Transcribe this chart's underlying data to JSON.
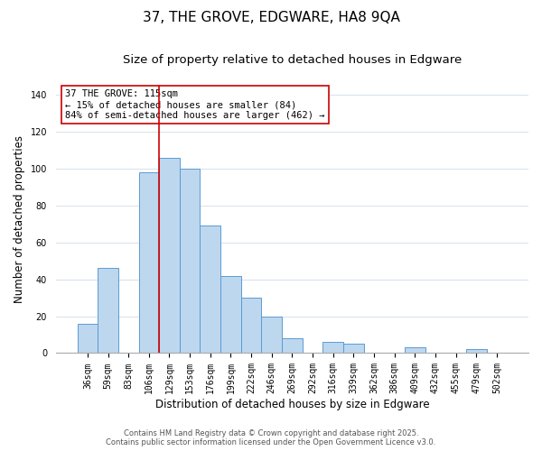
{
  "title": "37, THE GROVE, EDGWARE, HA8 9QA",
  "subtitle": "Size of property relative to detached houses in Edgware",
  "xlabel": "Distribution of detached houses by size in Edgware",
  "ylabel": "Number of detached properties",
  "bar_labels": [
    "36sqm",
    "59sqm",
    "83sqm",
    "106sqm",
    "129sqm",
    "153sqm",
    "176sqm",
    "199sqm",
    "222sqm",
    "246sqm",
    "269sqm",
    "292sqm",
    "316sqm",
    "339sqm",
    "362sqm",
    "386sqm",
    "409sqm",
    "432sqm",
    "455sqm",
    "479sqm",
    "502sqm"
  ],
  "bar_values": [
    16,
    46,
    0,
    98,
    106,
    100,
    69,
    42,
    30,
    20,
    8,
    0,
    6,
    5,
    0,
    0,
    3,
    0,
    0,
    2,
    0
  ],
  "bar_color": "#bdd7ee",
  "bar_edge_color": "#5b9bd5",
  "vline_color": "#cc0000",
  "vline_x_index": 3.5,
  "annotation_title": "37 THE GROVE: 115sqm",
  "annotation_line1": "← 15% of detached houses are smaller (84)",
  "annotation_line2": "84% of semi-detached houses are larger (462) →",
  "ylim": [
    0,
    145
  ],
  "yticks": [
    0,
    20,
    40,
    60,
    80,
    100,
    120,
    140
  ],
  "footer_line1": "Contains HM Land Registry data © Crown copyright and database right 2025.",
  "footer_line2": "Contains public sector information licensed under the Open Government Licence v3.0.",
  "bg_color": "#ffffff",
  "grid_color": "#d0dce8",
  "title_fontsize": 11,
  "subtitle_fontsize": 9.5,
  "axis_label_fontsize": 8.5,
  "tick_fontsize": 7,
  "annotation_fontsize": 7.5,
  "footer_fontsize": 6
}
